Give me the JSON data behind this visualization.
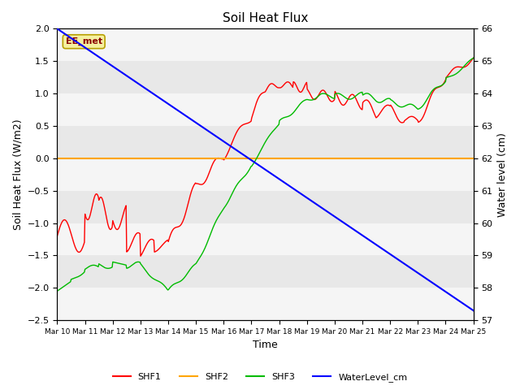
{
  "title": "Soil Heat Flux",
  "xlabel": "Time",
  "ylabel_left": "Soil Heat Flux (W/m2)",
  "ylabel_right": "Water level (cm)",
  "ylim_left": [
    -2.5,
    2.0
  ],
  "ylim_right": [
    57.0,
    66.0
  ],
  "yticks_left": [
    -2.5,
    -2.0,
    -1.5,
    -1.0,
    -0.5,
    0.0,
    0.5,
    1.0,
    1.5,
    2.0
  ],
  "yticks_right": [
    57.0,
    58.0,
    59.0,
    60.0,
    61.0,
    62.0,
    63.0,
    64.0,
    65.0,
    66.0
  ],
  "xtick_labels": [
    "Mar 10",
    "Mar 11",
    "Mar 12",
    "Mar 13",
    "Mar 14",
    "Mar 15",
    "Mar 16",
    "Mar 17",
    "Mar 18",
    "Mar 19",
    "Mar 20",
    "Mar 21",
    "Mar 22",
    "Mar 23",
    "Mar 24",
    "Mar 25"
  ],
  "shf2_value": 0.0,
  "background_color": "#ffffff",
  "band_colors": [
    "#f5f5f5",
    "#e8e8e8"
  ],
  "annotation_text": "EE_met",
  "annotation_color": "#8B0000",
  "annotation_bg": "#f5f0a0",
  "annotation_border": "#b8a000",
  "colors": {
    "SHF1": "#ff0000",
    "SHF2": "#ffa500",
    "SHF3": "#00bb00",
    "WaterLevel_cm": "#0000ff"
  }
}
